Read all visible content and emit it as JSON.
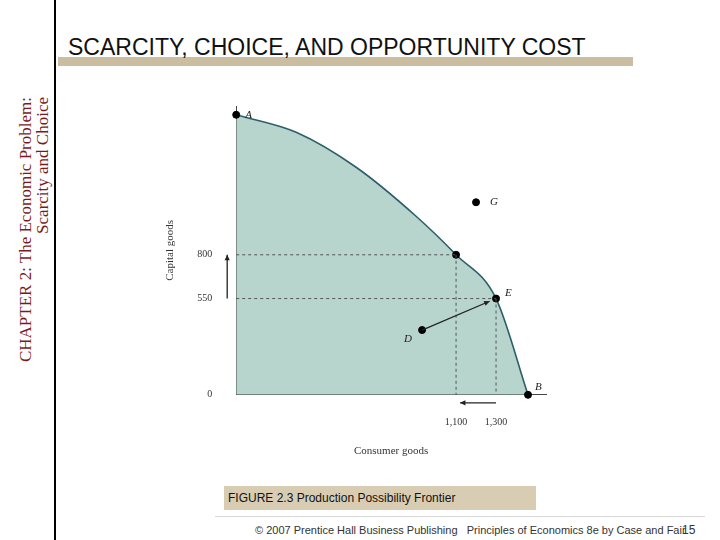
{
  "page": {
    "title": "SCARCITY, CHOICE, AND OPPORTUNITY COST",
    "side_label": [
      "CHAPTER 2: The Economic Problem:",
      "Scarcity and Choice"
    ],
    "caption": "FIGURE 2.3  Production Possibility Frontier",
    "footer": "© 2007 Prentice Hall Business Publishing   Principles of Economics 8e by Case and Fair",
    "page_number": 15
  },
  "chart_data": {
    "type": "scatter",
    "x_label": "Consumer goods",
    "y_label": "Capital goods",
    "xlim": [
      0,
      1550
    ],
    "ylim": [
      0,
      1650
    ],
    "xticks": [
      {
        "value": 1100,
        "label": "1,100"
      },
      {
        "value": 1300,
        "label": "1,300"
      }
    ],
    "yticks": [
      0,
      550,
      800
    ],
    "grid": false,
    "series": [
      {
        "type": "line",
        "color": "#2d5f6b",
        "x": [
          0,
          300,
          600,
          900,
          1100,
          1300,
          1460
        ],
        "values": [
          1600,
          1500,
          1300,
          1020,
          800,
          550,
          0
        ]
      },
      {
        "type": "scatter",
        "color": "#000000",
        "marker": "circle",
        "x": [
          0,
          1100,
          1200,
          1300,
          930,
          1460
        ],
        "values": [
          1600,
          800,
          1100,
          550,
          370,
          0
        ],
        "point_labels": [
          "A",
          null,
          "G",
          "E",
          "D",
          "B"
        ]
      }
    ]
  }
}
